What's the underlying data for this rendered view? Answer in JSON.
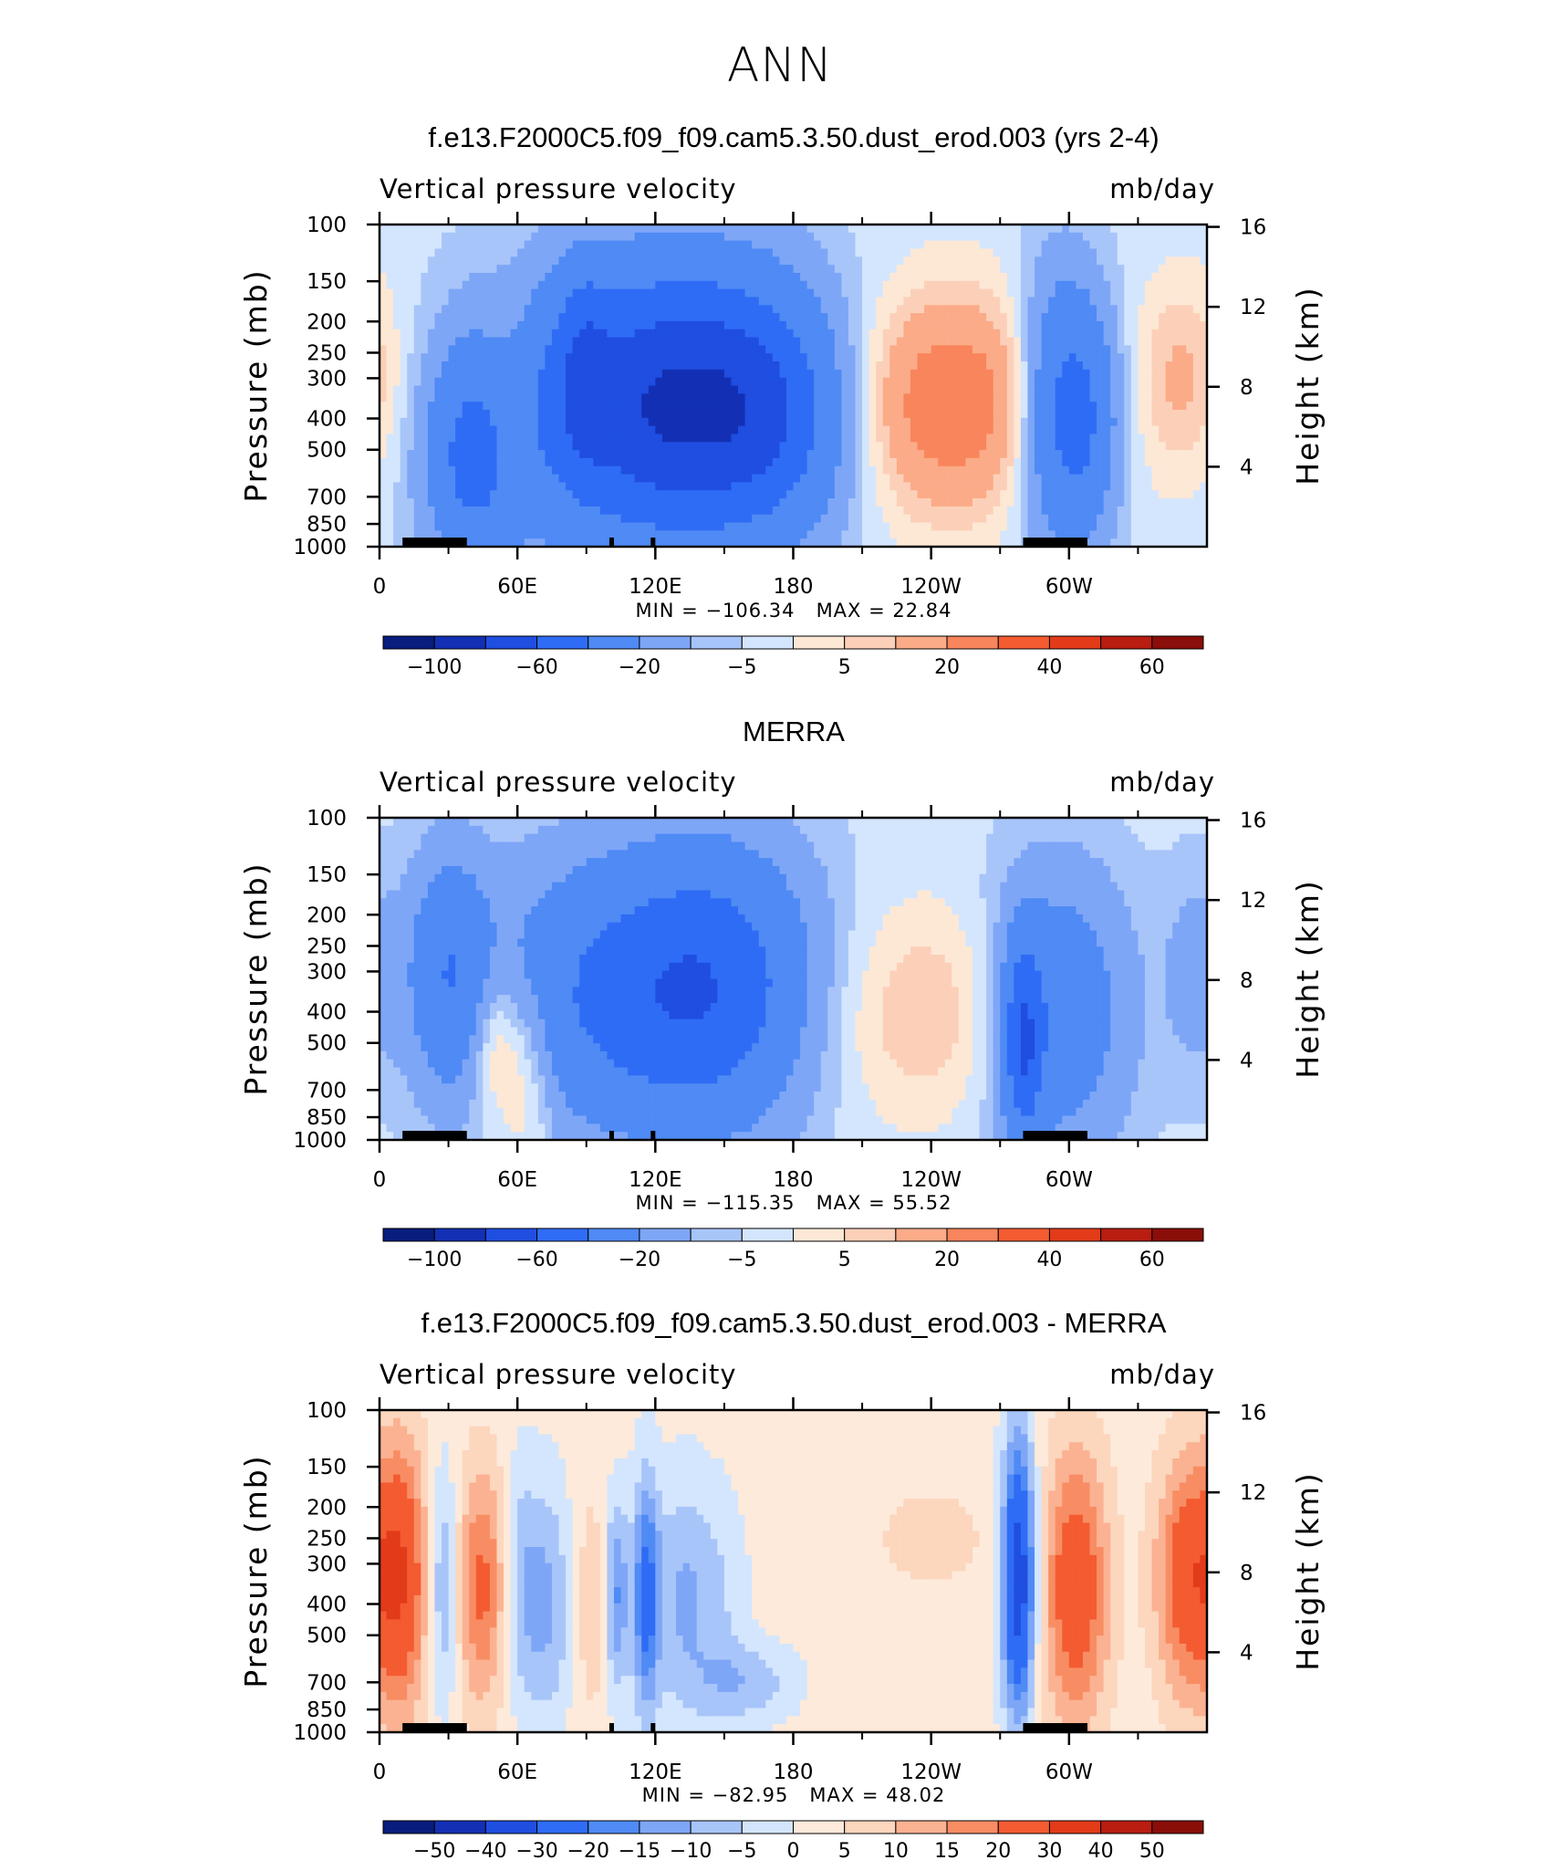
{
  "title": "ANN",
  "colors": {
    "scale_main": [
      "#081d7d",
      "#1330b4",
      "#1f4ee0",
      "#2f6cf5",
      "#4f8af5",
      "#7ea6f7",
      "#a8c5fa",
      "#d4e6fd",
      "#fde8d6",
      "#fcd0b8",
      "#fbab88",
      "#f8855c",
      "#f45b31",
      "#e23b1a",
      "#b91d10",
      "#8a0e0a"
    ],
    "scale_diff": [
      "#081d7d",
      "#1330b4",
      "#1f4ee0",
      "#2f6cf5",
      "#4f8af5",
      "#7ea6f7",
      "#a8c5fa",
      "#d4e6fd",
      "#fdeadb",
      "#fcd6bd",
      "#fbb292",
      "#f88d64",
      "#f45b31",
      "#e23b1a",
      "#b91d10",
      "#8a0e0a"
    ],
    "land": "#000000"
  },
  "chart_data": [
    {
      "type": "heatmap",
      "title": "f.e13.F2000C5.f09_f09.cam5.3.50.dust_erod.003 (yrs 2-4)",
      "left_string": "Vertical pressure velocity",
      "right_string": "mb/day",
      "ylabel": "Pressure (mb)",
      "ylabel_right": "Height (km)",
      "x_ticks": [
        "0",
        "60E",
        "120E",
        "180",
        "120W",
        "60W"
      ],
      "y_ticks": [
        "100",
        "150",
        "200",
        "250",
        "300",
        "400",
        "500",
        "700",
        "850",
        "1000"
      ],
      "y2_ticks": [
        "16",
        "12",
        "8",
        "4"
      ],
      "xlim": [
        0,
        360
      ],
      "ylim": [
        1000,
        100
      ],
      "log_y": true,
      "min_label": "MIN  =   −106.34",
      "max_label": "MAX  =    22.84",
      "colorbar_labels": [
        "−100",
        "−60",
        "−20",
        "−5",
        "5",
        "20",
        "40",
        "60"
      ],
      "levels": [
        -100,
        -80,
        -60,
        -40,
        -20,
        -10,
        -5,
        0,
        5,
        10,
        20,
        30,
        40,
        50,
        60
      ]
    },
    {
      "type": "heatmap",
      "title": "MERRA",
      "left_string": "Vertical pressure velocity",
      "right_string": "mb/day",
      "ylabel": "Pressure (mb)",
      "ylabel_right": "Height (km)",
      "x_ticks": [
        "0",
        "60E",
        "120E",
        "180",
        "120W",
        "60W"
      ],
      "y_ticks": [
        "100",
        "150",
        "200",
        "250",
        "300",
        "400",
        "500",
        "700",
        "850",
        "1000"
      ],
      "y2_ticks": [
        "16",
        "12",
        "8",
        "4"
      ],
      "xlim": [
        0,
        360
      ],
      "ylim": [
        1000,
        100
      ],
      "log_y": true,
      "min_label": "MIN  =   −115.35",
      "max_label": "MAX  =    55.52",
      "colorbar_labels": [
        "−100",
        "−60",
        "−20",
        "−5",
        "5",
        "20",
        "40",
        "60"
      ],
      "levels": [
        -100,
        -80,
        -60,
        -40,
        -20,
        -10,
        -5,
        0,
        5,
        10,
        20,
        30,
        40,
        50,
        60
      ]
    },
    {
      "type": "heatmap",
      "title": "f.e13.F2000C5.f09_f09.cam5.3.50.dust_erod.003 - MERRA",
      "left_string": "Vertical pressure velocity",
      "right_string": "mb/day",
      "ylabel": "Pressure (mb)",
      "ylabel_right": "Height (km)",
      "x_ticks": [
        "0",
        "60E",
        "120E",
        "180",
        "120W",
        "60W"
      ],
      "y_ticks": [
        "100",
        "150",
        "200",
        "250",
        "300",
        "400",
        "500",
        "700",
        "850",
        "1000"
      ],
      "y2_ticks": [
        "16",
        "12",
        "8",
        "4"
      ],
      "xlim": [
        0,
        360
      ],
      "ylim": [
        1000,
        100
      ],
      "log_y": true,
      "min_label": "MIN  =   −82.95",
      "max_label": "MAX  =    48.02",
      "colorbar_labels": [
        "−50",
        "−40",
        "−30",
        "−20",
        "−15",
        "−10",
        "−5",
        "0",
        "5",
        "10",
        "15",
        "20",
        "30",
        "40",
        "50"
      ],
      "levels": [
        -50,
        -40,
        -30,
        -20,
        -15,
        -10,
        -5,
        0,
        5,
        10,
        15,
        20,
        30,
        40,
        50
      ]
    }
  ]
}
